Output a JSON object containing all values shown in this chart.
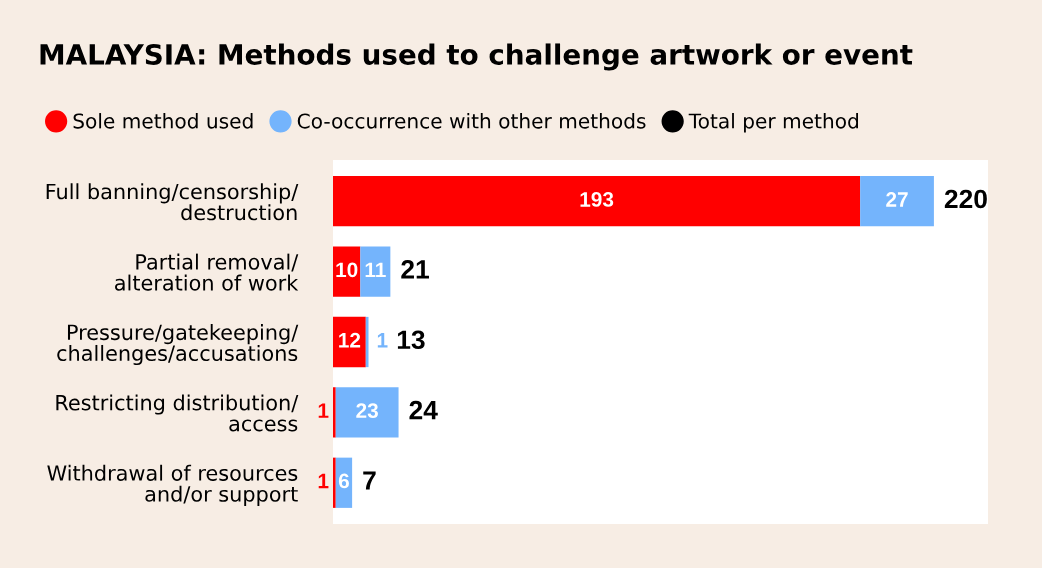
{
  "chart_data": {
    "type": "bar",
    "orientation": "horizontal",
    "stacked": true,
    "title": "MALAYSIA: Methods used to challenge artwork or event",
    "categories": [
      "Full banning/censorship/\ndestruction",
      "Partial removal/\nalteration of work",
      "Pressure/gatekeeping/\nchallenges/accusations",
      "Restricting distribution/\naccess",
      "Withdrawal of resources\nand/or support"
    ],
    "series": [
      {
        "name": "Sole method used",
        "color": "#ff0000",
        "values": [
          193,
          10,
          12,
          1,
          1
        ]
      },
      {
        "name": "Co-occurrence with other methods",
        "color": "#74b4fc",
        "values": [
          27,
          11,
          1,
          23,
          6
        ]
      }
    ],
    "totals": [
      "220",
      "21",
      "13",
      "24",
      "7"
    ],
    "annotations": [
      "Total per method"
    ],
    "data_labels": true,
    "legend": "top",
    "tick_labels": "y"
  }
}
